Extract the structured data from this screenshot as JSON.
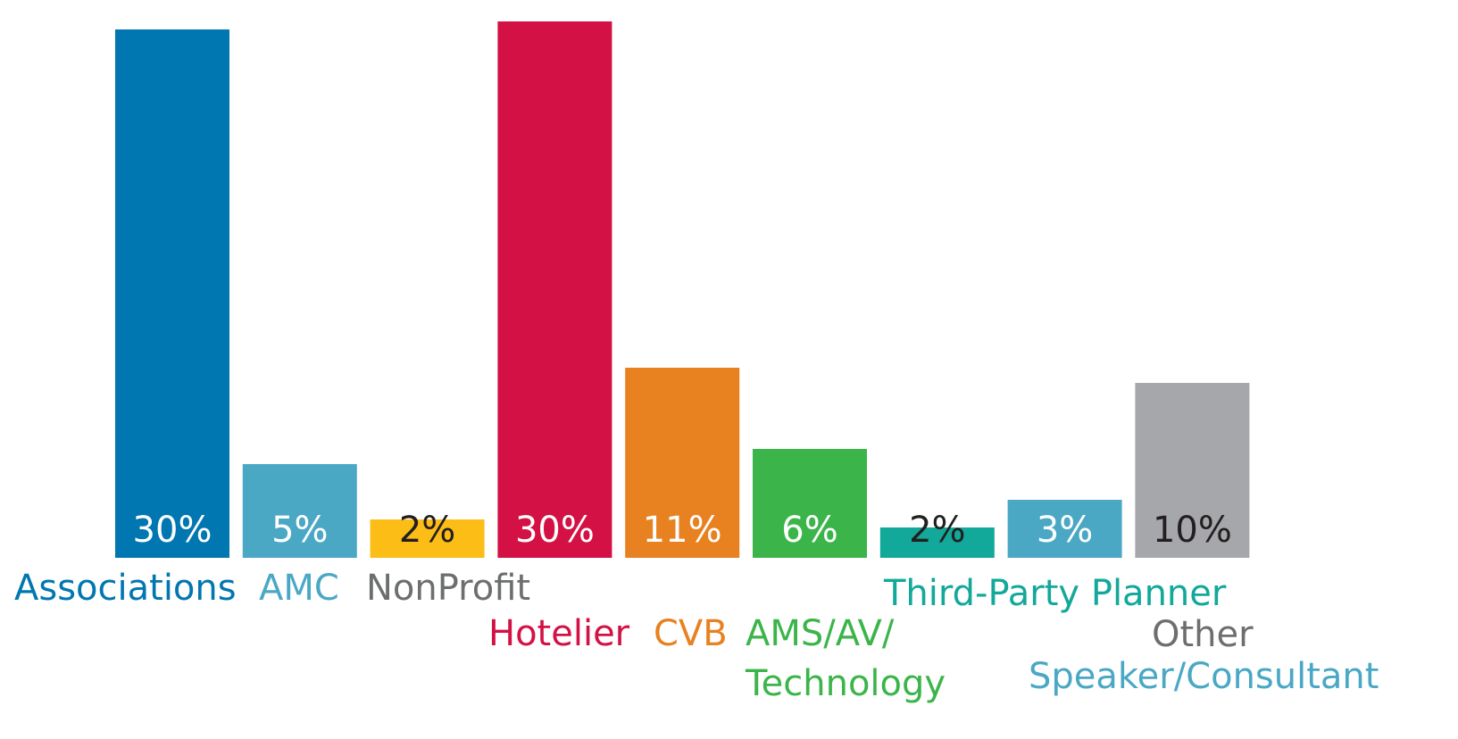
{
  "chart_data": {
    "type": "bar",
    "categories": [
      "Associations",
      "AMC",
      "NonProfit",
      "Hotelier",
      "CVB",
      "AMS/AV/ Technology",
      "Third-Party Planner",
      "Speaker/Consultant",
      "Other"
    ],
    "values": [
      30,
      5,
      2,
      30,
      11,
      6,
      2,
      3,
      10
    ],
    "value_labels": [
      "30%",
      "5%",
      "2%",
      "30%",
      "11%",
      "6%",
      "2%",
      "3%",
      "10%"
    ],
    "category_label_lines": [
      [
        "Associations"
      ],
      [
        "AMC"
      ],
      [
        "NonProfit"
      ],
      [
        "Hotelier"
      ],
      [
        "CVB"
      ],
      [
        "AMS/AV/",
        "Technology"
      ],
      [
        "Third-Party Planner"
      ],
      [
        "Speaker/Consultant"
      ],
      [
        "Other"
      ]
    ],
    "bar_colors": [
      "#0077b0",
      "#4aa8c5",
      "#fbbd16",
      "#d31145",
      "#e8811f",
      "#3bb54a",
      "#12a89a",
      "#4aa8c5",
      "#a6a7aa"
    ],
    "category_label_colors": [
      "#0077b0",
      "#4aa8c5",
      "#6d6e70",
      "#d31145",
      "#e8811f",
      "#3bb54a",
      "#12a89a",
      "#4aa8c5",
      "#6d6e70"
    ],
    "value_label_colors": [
      "#ffffff",
      "#ffffff",
      "#231f20",
      "#ffffff",
      "#ffffff",
      "#ffffff",
      "#231f20",
      "#ffffff",
      "#231f20"
    ],
    "legend": "none",
    "grid": false
  }
}
